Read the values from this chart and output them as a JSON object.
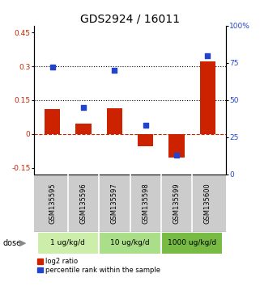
{
  "title": "GDS2924 / 16011",
  "samples": [
    "GSM135595",
    "GSM135596",
    "GSM135597",
    "GSM135598",
    "GSM135599",
    "GSM135600"
  ],
  "log2_ratio": [
    0.11,
    0.045,
    0.115,
    -0.055,
    -0.105,
    0.32
  ],
  "percentile_rank": [
    72,
    45,
    70,
    33,
    13,
    80
  ],
  "dose_groups": [
    {
      "label": "1 ug/kg/d",
      "samples": [
        0,
        1
      ],
      "color": "#cceeaa"
    },
    {
      "label": "10 ug/kg/d",
      "samples": [
        2,
        3
      ],
      "color": "#aade88"
    },
    {
      "label": "1000 ug/kg/d",
      "samples": [
        4,
        5
      ],
      "color": "#77bb44"
    }
  ],
  "ylim_left": [
    -0.18,
    0.48
  ],
  "ylim_right": [
    0,
    100
  ],
  "yticks_left": [
    -0.15,
    0,
    0.15,
    0.3,
    0.45
  ],
  "yticks_right": [
    0,
    25,
    50,
    75,
    100
  ],
  "hline_dotted": [
    0.15,
    0.3
  ],
  "bar_color": "#cc2200",
  "dot_color": "#2244cc",
  "background_plot": "#ffffff",
  "background_sample": "#cccccc",
  "title_fontsize": 10,
  "tick_label_fontsize": 6.5,
  "axis_label_color_left": "#cc2200",
  "axis_label_color_right": "#2244cc",
  "bar_width": 0.5
}
